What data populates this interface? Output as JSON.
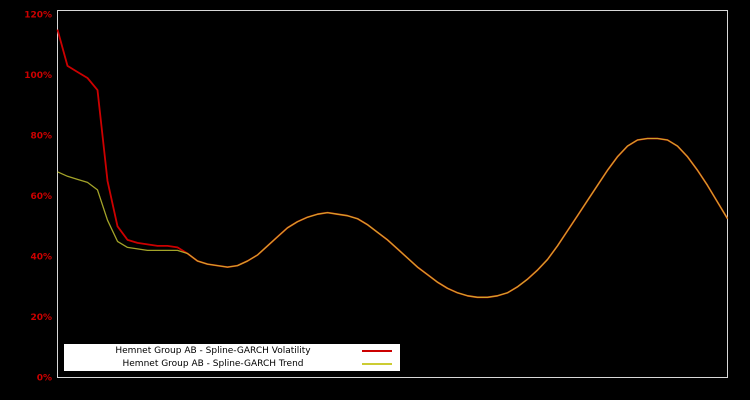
{
  "page": {
    "background": "#000000"
  },
  "chart_data": {
    "type": "line",
    "title": "",
    "xlabel": "",
    "ylabel": "",
    "ylim": [
      0,
      120
    ],
    "yticks": [
      0,
      20,
      40,
      60,
      80,
      100,
      120
    ],
    "ytick_labels": [
      "0%",
      "20%",
      "40%",
      "60%",
      "80%",
      "100%",
      "120%"
    ],
    "ytick_format": "percent",
    "x_axis_labels": "none",
    "grid": false,
    "legend_position": "bottom-left",
    "colors": {
      "background": "#000000",
      "plot_border": "#d8d8d8",
      "tick_label": "#cc0000"
    },
    "series": [
      {
        "name": "Hemnet Group AB - Spline-GARCH Volatility",
        "color": "#cc0000",
        "values": [
          115,
          103,
          101,
          99,
          95,
          65,
          50,
          45.5,
          44.5,
          44,
          43.5,
          43.5,
          43,
          41,
          38.5,
          37.5,
          37,
          36.5,
          37,
          38.5,
          40.5,
          43.5,
          46.5,
          49.5,
          51.5,
          53,
          54,
          54.5,
          54,
          53.5,
          52.5,
          50.5,
          48,
          45.5,
          42.5,
          39.5,
          36.5,
          34,
          31.5,
          29.5,
          28,
          27,
          26.5,
          26.5,
          27,
          28,
          30,
          32.5,
          35.5,
          39,
          43.5,
          48.5,
          53.5,
          58.5,
          63.5,
          68.5,
          73,
          76.5,
          78.5,
          79,
          79,
          78.5,
          76.5,
          73,
          68.5,
          63.5,
          58,
          52.5
        ]
      },
      {
        "name": "Hemnet Group AB - Spline-GARCH Trend",
        "color": "#cccc33",
        "values": [
          68,
          66.5,
          65.5,
          64.5,
          62,
          52,
          45,
          43,
          42.5,
          42,
          42,
          42,
          42,
          41,
          38.5,
          37.5,
          37,
          36.5,
          37,
          38.5,
          40.5,
          43.5,
          46.5,
          49.5,
          51.5,
          53,
          54,
          54.5,
          54,
          53.5,
          52.5,
          50.5,
          48,
          45.5,
          42.5,
          39.5,
          36.5,
          34,
          31.5,
          29.5,
          28,
          27,
          26.5,
          26.5,
          27,
          28,
          30,
          32.5,
          35.5,
          39,
          43.5,
          48.5,
          53.5,
          58.5,
          63.5,
          68.5,
          73,
          76.5,
          78.5,
          79,
          79,
          78.5,
          76.5,
          73,
          68.5,
          63.5,
          58,
          52.5
        ]
      }
    ]
  }
}
